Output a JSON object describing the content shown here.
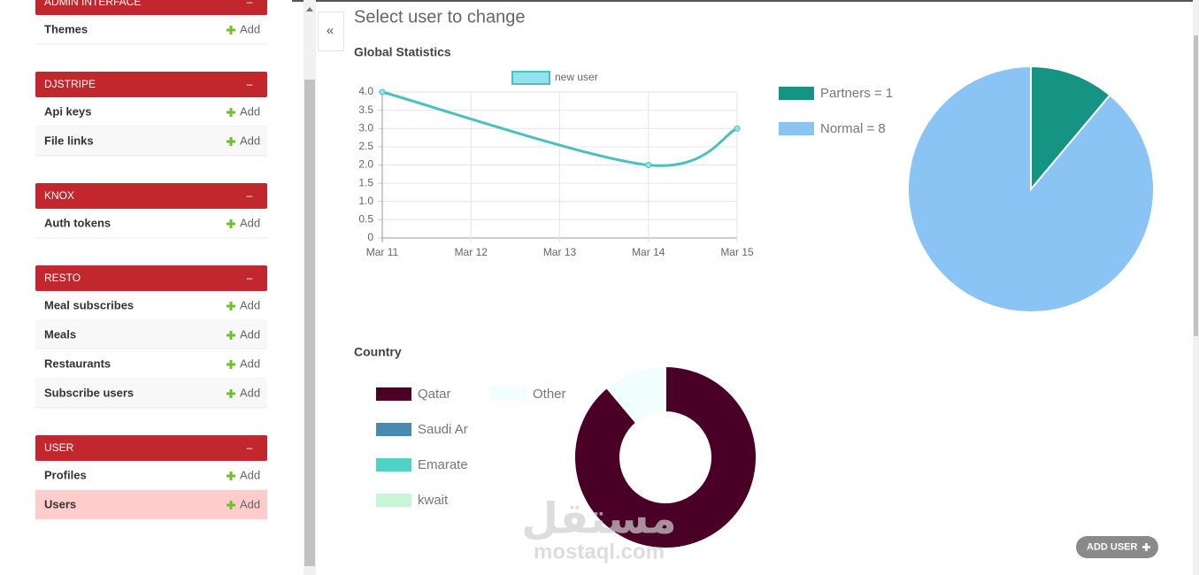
{
  "sidebar": {
    "collapse_symbol": "–",
    "action": "Add",
    "selected": "USER.Users",
    "groups": [
      {
        "title": "ADMIN INTERFACE",
        "items": [
          "Themes"
        ]
      },
      {
        "title": "DJSTRIPE",
        "items": [
          "Api keys",
          "File links"
        ]
      },
      {
        "title": "KNOX",
        "items": [
          "Auth tokens"
        ]
      },
      {
        "title": "RESTO",
        "items": [
          "Meal subscribes",
          "Meals",
          "Restaurants",
          "Subscribe users"
        ]
      },
      {
        "title": "USER",
        "items": [
          "Profiles",
          "Users"
        ]
      }
    ]
  },
  "collapse_button": "«",
  "header": {
    "title": "Select user to change"
  },
  "chart_data": [
    {
      "type": "line",
      "title": "Global Statistics",
      "x": [
        "Mar 11",
        "Mar 14",
        "Mar 15"
      ],
      "xticks": [
        "Mar 11",
        "Mar 12",
        "Mar 13",
        "Mar 14",
        "Mar 15"
      ],
      "series": [
        {
          "name": "new user",
          "color": "#4bc0c0",
          "values": [
            4,
            2,
            3
          ]
        }
      ],
      "ylim": [
        0,
        4
      ],
      "yticks": [
        0,
        0.5,
        {
          "value": 1,
          "label": "1.0"
        },
        1.5,
        {
          "value": 2,
          "label": "2.0"
        },
        2.5,
        {
          "value": 3,
          "label": "3.0"
        },
        3.5,
        {
          "value": 4,
          "label": "4.0"
        }
      ],
      "grid": true
    },
    {
      "type": "pie",
      "categories": [
        "Partners = 1",
        "Normal = 8"
      ],
      "values": [
        1,
        8
      ],
      "colors": [
        "#159383",
        "#89c4f4"
      ]
    },
    {
      "type": "doughnut",
      "title": "Country",
      "categories": [
        "Qatar",
        "Saudi Ar",
        "Emarate",
        "kwait",
        "Other"
      ],
      "values": [
        8,
        0,
        0,
        0,
        1
      ],
      "colors": [
        "#4a0026",
        "#4a8ab0",
        "#4fd1c5",
        "#c6f6d5",
        "#f0fffd"
      ]
    }
  ],
  "add_user_button": "ADD USER",
  "watermark": {
    "text": "مستقل",
    "url": "mostaql.com"
  }
}
